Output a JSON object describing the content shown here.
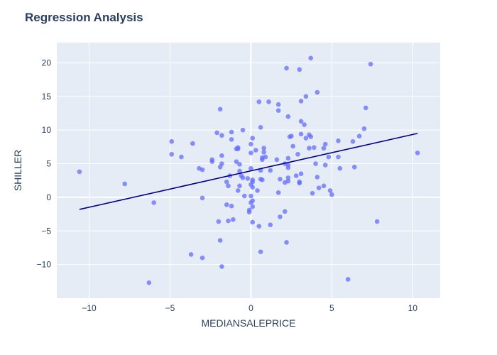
{
  "chart_data": {
    "type": "scatter",
    "title": "Regression Analysis",
    "xlabel": "MEDIANSALEPRICE",
    "ylabel": "SHILLER",
    "xlim": [
      -12,
      11.7
    ],
    "ylim": [
      -15,
      23
    ],
    "x_ticks": [
      -10,
      -5,
      0,
      5,
      10
    ],
    "y_ticks": [
      -10,
      -5,
      0,
      5,
      10,
      15,
      20
    ],
    "grid": true,
    "colors": {
      "plot_bg": "#e5ecf6",
      "grid": "#ffffff",
      "point": "#636efa",
      "line": "#00008b"
    },
    "trendline": {
      "x": [
        -10.6,
        10.3
      ],
      "y": [
        -1.8,
        9.5
      ]
    },
    "points": [
      [
        -10.6,
        3.8
      ],
      [
        -7.8,
        2.0
      ],
      [
        -6.3,
        -12.7
      ],
      [
        -6.0,
        -0.8
      ],
      [
        -4.9,
        8.3
      ],
      [
        -4.9,
        6.4
      ],
      [
        -4.3,
        6.0
      ],
      [
        -3.7,
        -8.5
      ],
      [
        -3.6,
        8.0
      ],
      [
        -3.2,
        4.3
      ],
      [
        -3.0,
        4.1
      ],
      [
        -3.0,
        -0.1
      ],
      [
        -3.0,
        -9.0
      ],
      [
        -2.4,
        5.3
      ],
      [
        -2.4,
        5.6
      ],
      [
        -2.1,
        9.6
      ],
      [
        -2.0,
        -3.6
      ],
      [
        -1.9,
        4.5
      ],
      [
        -1.9,
        -6.4
      ],
      [
        -1.9,
        13.1
      ],
      [
        -1.8,
        9.2
      ],
      [
        -1.8,
        6.2
      ],
      [
        -1.8,
        5.0
      ],
      [
        -1.8,
        -10.3
      ],
      [
        -1.5,
        2.3
      ],
      [
        -1.5,
        -1.1
      ],
      [
        -1.4,
        1.7
      ],
      [
        -1.4,
        -3.5
      ],
      [
        -1.3,
        3.2
      ],
      [
        -1.2,
        8.6
      ],
      [
        -1.2,
        9.7
      ],
      [
        -1.2,
        -1.3
      ],
      [
        -1.1,
        -3.3
      ],
      [
        -0.9,
        5.3
      ],
      [
        -0.9,
        7.2
      ],
      [
        -0.8,
        7.4
      ],
      [
        -0.8,
        7.2
      ],
      [
        -0.8,
        1.0
      ],
      [
        -0.7,
        4.9
      ],
      [
        -0.7,
        1.7
      ],
      [
        -0.7,
        3.9
      ],
      [
        -0.6,
        3.2
      ],
      [
        -0.5,
        10.0
      ],
      [
        -0.5,
        2.9
      ],
      [
        -0.4,
        0.2
      ],
      [
        -0.2,
        2.8
      ],
      [
        -0.1,
        -1.9
      ],
      [
        -0.1,
        -2.2
      ],
      [
        0.0,
        4.3
      ],
      [
        0.0,
        7.9
      ],
      [
        0.0,
        6.6
      ],
      [
        0.0,
        1.9
      ],
      [
        0.0,
        0.2
      ],
      [
        0.0,
        -0.8
      ],
      [
        0.1,
        8.8
      ],
      [
        0.1,
        2.6
      ],
      [
        0.1,
        2.3
      ],
      [
        0.1,
        1.5
      ],
      [
        0.1,
        -0.5
      ],
      [
        0.1,
        -1.4
      ],
      [
        0.1,
        -3.7
      ],
      [
        0.3,
        7.0
      ],
      [
        0.4,
        1.0
      ],
      [
        0.5,
        14.2
      ],
      [
        0.5,
        -4.3
      ],
      [
        0.6,
        10.4
      ],
      [
        0.6,
        4.0
      ],
      [
        0.6,
        2.7
      ],
      [
        0.6,
        -8.1
      ],
      [
        0.7,
        2.6
      ],
      [
        0.7,
        5.6
      ],
      [
        0.7,
        5.9
      ],
      [
        0.8,
        7.3
      ],
      [
        0.8,
        6.7
      ],
      [
        0.9,
        6.0
      ],
      [
        1.1,
        14.2
      ],
      [
        1.2,
        4.0
      ],
      [
        1.2,
        -4.1
      ],
      [
        1.6,
        5.6
      ],
      [
        1.7,
        13.8
      ],
      [
        1.7,
        0.7
      ],
      [
        1.7,
        12.9
      ],
      [
        1.8,
        2.7
      ],
      [
        1.8,
        -2.9
      ],
      [
        2.1,
        5.0
      ],
      [
        2.1,
        2.2
      ],
      [
        2.1,
        -2.1
      ],
      [
        2.2,
        19.2
      ],
      [
        2.2,
        -6.7
      ],
      [
        2.3,
        12.0
      ],
      [
        2.3,
        4.8
      ],
      [
        2.3,
        4.4
      ],
      [
        2.3,
        5.8
      ],
      [
        2.3,
        2.9
      ],
      [
        2.3,
        2.4
      ],
      [
        2.4,
        9.0
      ],
      [
        2.5,
        9.1
      ],
      [
        2.6,
        7.6
      ],
      [
        2.8,
        3.2
      ],
      [
        2.9,
        6.4
      ],
      [
        3.0,
        2.3
      ],
      [
        3.0,
        2.1
      ],
      [
        3.0,
        19.0
      ],
      [
        3.1,
        14.3
      ],
      [
        3.1,
        11.3
      ],
      [
        3.1,
        9.4
      ],
      [
        3.1,
        3.5
      ],
      [
        3.3,
        10.8
      ],
      [
        3.4,
        8.8
      ],
      [
        3.4,
        15.0
      ],
      [
        3.6,
        7.3
      ],
      [
        3.6,
        9.3
      ],
      [
        3.7,
        20.7
      ],
      [
        3.7,
        9.0
      ],
      [
        3.8,
        0.6
      ],
      [
        3.9,
        7.4
      ],
      [
        4.0,
        5.0
      ],
      [
        4.1,
        3.0
      ],
      [
        4.1,
        15.6
      ],
      [
        4.2,
        1.4
      ],
      [
        4.5,
        7.3
      ],
      [
        4.5,
        1.7
      ],
      [
        4.6,
        4.8
      ],
      [
        4.6,
        7.9
      ],
      [
        4.8,
        6.0
      ],
      [
        4.9,
        1.0
      ],
      [
        5.0,
        0.4
      ],
      [
        5.4,
        8.4
      ],
      [
        5.4,
        6.0
      ],
      [
        5.5,
        4.3
      ],
      [
        6.0,
        -12.2
      ],
      [
        6.3,
        8.3
      ],
      [
        6.4,
        4.5
      ],
      [
        6.7,
        9.1
      ],
      [
        7.0,
        10.2
      ],
      [
        7.1,
        13.3
      ],
      [
        7.4,
        19.8
      ],
      [
        7.8,
        -3.6
      ],
      [
        10.3,
        6.6
      ]
    ]
  }
}
